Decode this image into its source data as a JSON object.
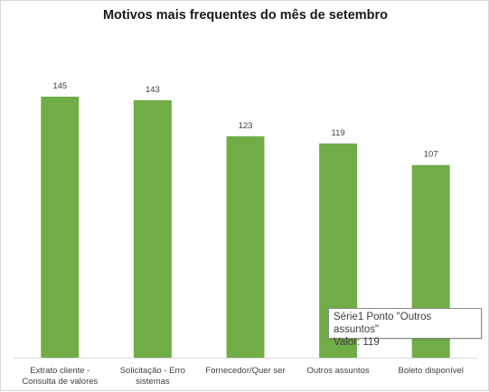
{
  "chart_data": {
    "type": "bar",
    "title": "Motivos mais frequentes do mês de setembro",
    "categories": [
      [
        "Extrato cliente -",
        "Consulta de valores"
      ],
      [
        "Solicitação - Erro",
        "sistemas"
      ],
      [
        "Fornecedor/Quer ser"
      ],
      [
        "Outros assuntos"
      ],
      [
        "Boleto disponível"
      ]
    ],
    "series": [
      {
        "values": [
          145,
          143,
          123,
          119,
          107
        ]
      }
    ],
    "ylim": [
      0,
      160
    ],
    "grid": false,
    "bar_color": "#70ad47",
    "axis_color": "#d9d9d9",
    "label_color": "#404040"
  },
  "tooltip": {
    "line1": "Série1 Ponto \"Outros assuntos\"",
    "line2": "Valor: 119"
  }
}
